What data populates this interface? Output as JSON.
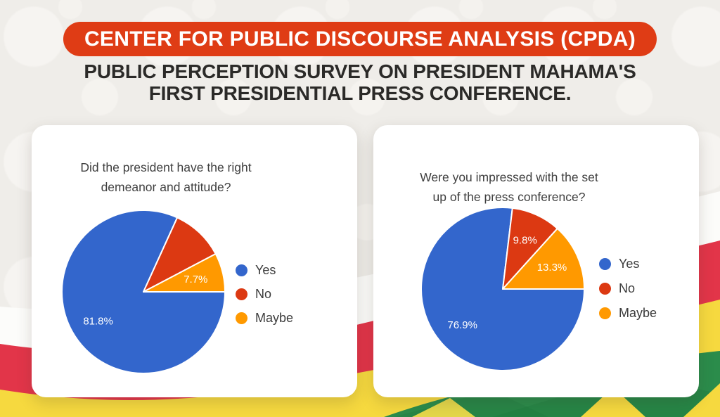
{
  "page": {
    "banner_title": "CENTER FOR PUBLIC DISCOURSE ANALYSIS (CPDA)",
    "subtitle_line1": "PUBLIC PERCEPTION SURVEY ON PRESIDENT MAHAMA'S",
    "subtitle_line2": "FIRST PRESIDENTIAL PRESS CONFERENCE."
  },
  "colors": {
    "banner_bg": "#DF3C15",
    "banner_text": "#FFFFFF",
    "pie_yes_blue": "#3366CC",
    "pie_no_red": "#DC3912",
    "pie_maybe_orange": "#FF9900",
    "flag_red": "#E23549",
    "flag_yellow": "#F6D93F",
    "flag_green": "#2B8C4B"
  },
  "chart_data": [
    {
      "type": "pie",
      "title": "Did the president have the right demeanor and attitude?",
      "title_lines": [
        "Did the president have the right",
        "demeanor and attitude?"
      ],
      "legend_position": "right",
      "legend_entries": [
        "Yes",
        "No",
        "Maybe"
      ],
      "start_angle_deg": 90,
      "slices": [
        {
          "label": "Yes",
          "value": 81.8,
          "color": "#3366CC",
          "data_label": "81.8%"
        },
        {
          "label": "No",
          "value": 10.5,
          "color": "#DC3912",
          "data_label": ""
        },
        {
          "label": "Maybe",
          "value": 7.7,
          "color": "#FF9900",
          "data_label": "7.7%"
        }
      ]
    },
    {
      "type": "pie",
      "title": "Were you impressed with the set up of the press conference?",
      "title_lines": [
        "Were you impressed with the set",
        "up of the press conference?"
      ],
      "legend_position": "right",
      "legend_entries": [
        "Yes",
        "No",
        "Maybe"
      ],
      "start_angle_deg": 90,
      "slices": [
        {
          "label": "Yes",
          "value": 76.9,
          "color": "#3366CC",
          "data_label": "76.9%"
        },
        {
          "label": "No",
          "value": 9.8,
          "color": "#DC3912",
          "data_label": "9.8%"
        },
        {
          "label": "Maybe",
          "value": 13.3,
          "color": "#FF9900",
          "data_label": "13.3%"
        }
      ]
    }
  ]
}
